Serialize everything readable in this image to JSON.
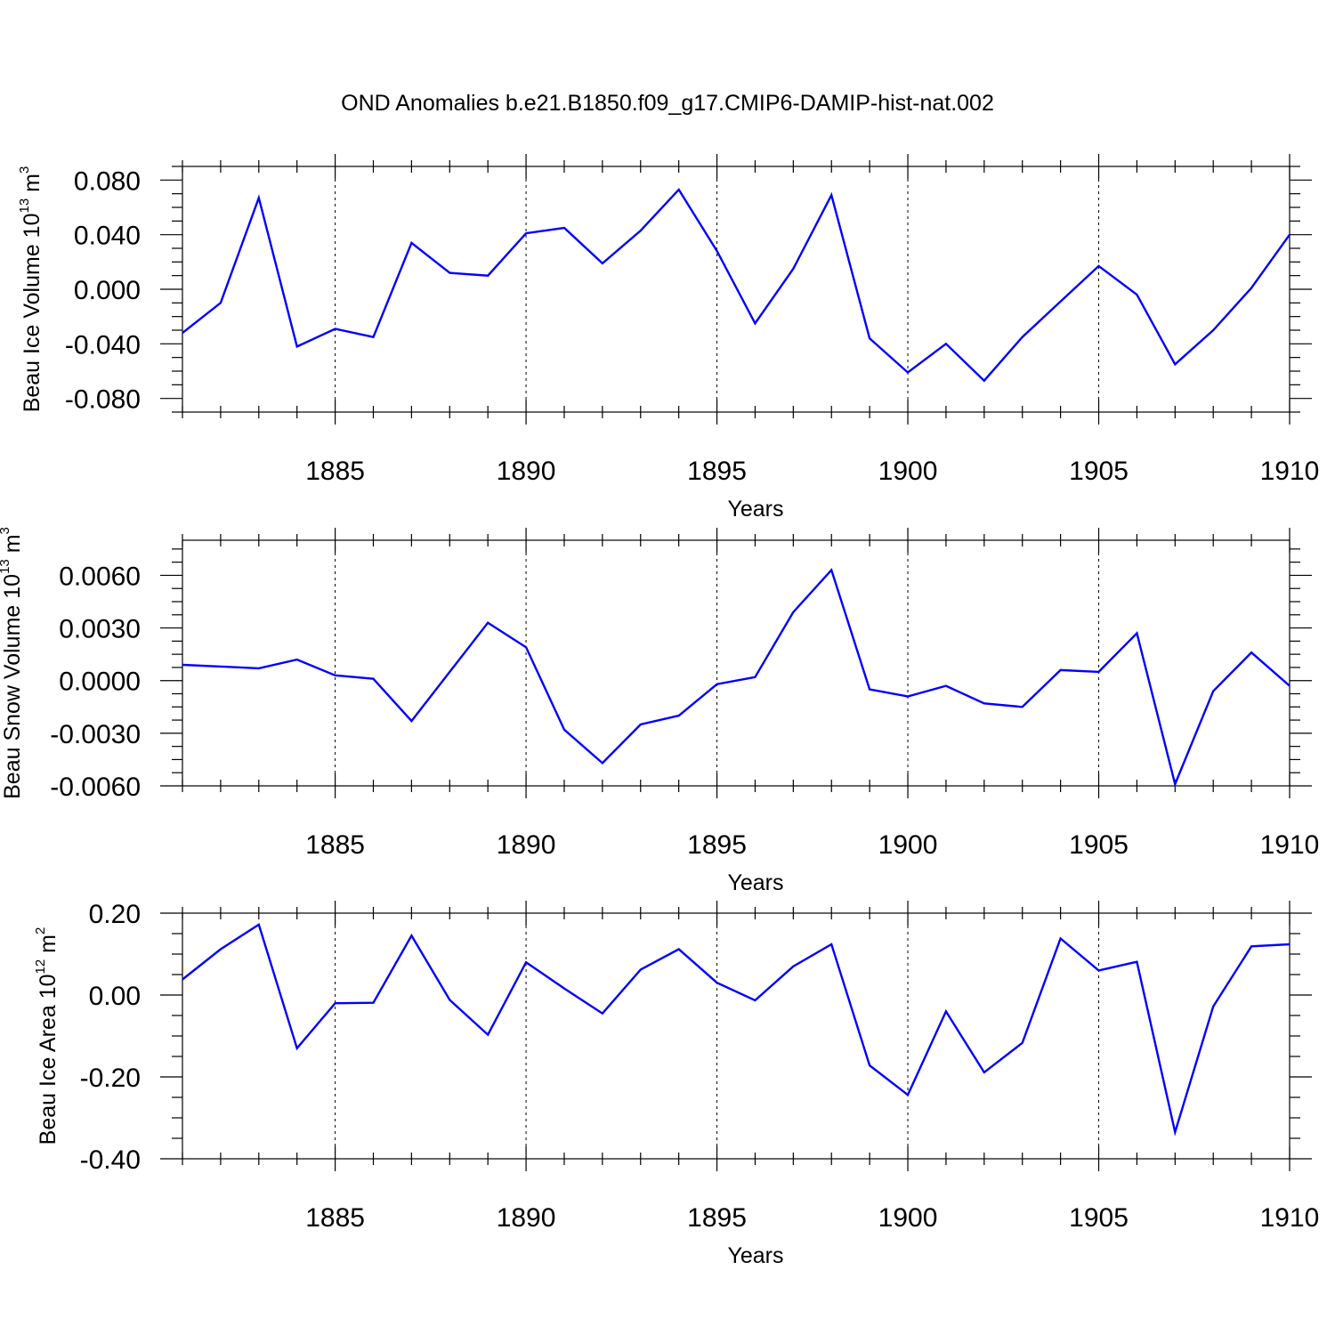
{
  "title": "OND Anomalies b.e21.B1850.f09_g17.CMIP6-DAMIP-hist-nat.002",
  "colors": {
    "line": "#0000ff",
    "axes": "#000000",
    "background": "#ffffff"
  },
  "chart_data": [
    {
      "type": "line",
      "name": "ice-volume",
      "series_name": "Beau Ice Volume",
      "ylabel": {
        "main": "Beau Ice Volume 10",
        "exp": "13",
        "unit": " m",
        "unit_exp": "3"
      },
      "xlabel": "Years",
      "xlim": [
        1881,
        1910
      ],
      "ylim": [
        -0.09,
        0.09
      ],
      "xticks": [
        1885,
        1890,
        1895,
        1900,
        1905,
        1910
      ],
      "xtick_labels": [
        "1885",
        "1890",
        "1895",
        "1900",
        "1905",
        "1910"
      ],
      "yticks": [
        0.08,
        0.04,
        0.0,
        -0.04,
        -0.08
      ],
      "ytick_labels": [
        "0.080",
        "0.040",
        "0.000",
        "-0.040",
        "-0.080"
      ],
      "x": [
        1881,
        1882,
        1883,
        1884,
        1885,
        1886,
        1887,
        1888,
        1889,
        1890,
        1891,
        1892,
        1893,
        1894,
        1895,
        1896,
        1897,
        1898,
        1899,
        1900,
        1901,
        1902,
        1903,
        1904,
        1905,
        1906,
        1907,
        1908,
        1909,
        1910
      ],
      "y": [
        -0.032,
        -0.01,
        0.067,
        -0.042,
        -0.029,
        -0.035,
        0.034,
        0.012,
        0.01,
        0.041,
        0.045,
        0.019,
        0.043,
        0.073,
        0.028,
        -0.025,
        0.015,
        0.069,
        -0.036,
        -0.061,
        -0.04,
        -0.067,
        -0.035,
        -0.009,
        0.017,
        -0.004,
        -0.055,
        -0.03,
        0.001,
        0.04
      ],
      "grid": "vertical dashed at major x ticks"
    },
    {
      "type": "line",
      "name": "snow-volume",
      "series_name": "Beau Snow Volume",
      "ylabel": {
        "main": "Beau Snow Volume 10",
        "exp": "13",
        "unit": " m",
        "unit_exp": "3"
      },
      "xlabel": "Years",
      "xlim": [
        1881,
        1910
      ],
      "ylim": [
        -0.006,
        0.008
      ],
      "xticks": [
        1885,
        1890,
        1895,
        1900,
        1905,
        1910
      ],
      "xtick_labels": [
        "1885",
        "1890",
        "1895",
        "1900",
        "1905",
        "1910"
      ],
      "yticks": [
        0.006,
        0.003,
        0.0,
        -0.003,
        -0.006
      ],
      "ytick_labels": [
        "0.0060",
        "0.0030",
        "0.0000",
        "-0.0030",
        "-0.0060"
      ],
      "x": [
        1881,
        1882,
        1883,
        1884,
        1885,
        1886,
        1887,
        1888,
        1889,
        1890,
        1891,
        1892,
        1893,
        1894,
        1895,
        1896,
        1897,
        1898,
        1899,
        1900,
        1901,
        1902,
        1903,
        1904,
        1905,
        1906,
        1907,
        1908,
        1909,
        1910
      ],
      "y": [
        0.0009,
        0.0008,
        0.0007,
        0.0012,
        0.0003,
        0.0001,
        -0.0023,
        0.0005,
        0.0033,
        0.0019,
        -0.0028,
        -0.0047,
        -0.0025,
        -0.002,
        -0.0002,
        0.0002,
        0.0039,
        0.0063,
        -0.0005,
        -0.0009,
        -0.0003,
        -0.0013,
        -0.0015,
        0.0006,
        0.0005,
        0.0027,
        -0.0059,
        -0.0006,
        0.0016,
        -0.0003
      ],
      "grid": "vertical dashed at major x ticks"
    },
    {
      "type": "line",
      "name": "ice-area",
      "series_name": "Beau Ice Area",
      "ylabel": {
        "main": "Beau Ice Area 10",
        "exp": "12",
        "unit": " m",
        "unit_exp": "2"
      },
      "xlabel": "Years",
      "xlim": [
        1881,
        1910
      ],
      "ylim": [
        -0.4,
        0.2
      ],
      "xticks": [
        1885,
        1890,
        1895,
        1900,
        1905,
        1910
      ],
      "xtick_labels": [
        "1885",
        "1890",
        "1895",
        "1900",
        "1905",
        "1910"
      ],
      "yticks": [
        0.2,
        0.0,
        -0.2,
        -0.4
      ],
      "ytick_labels": [
        "0.20",
        "0.00",
        "-0.20",
        "-0.40"
      ],
      "x": [
        1881,
        1882,
        1883,
        1884,
        1885,
        1886,
        1887,
        1888,
        1889,
        1890,
        1891,
        1892,
        1893,
        1894,
        1895,
        1896,
        1897,
        1898,
        1899,
        1900,
        1901,
        1902,
        1903,
        1904,
        1905,
        1906,
        1907,
        1908,
        1909,
        1910
      ],
      "y": [
        0.038,
        0.112,
        0.172,
        -0.13,
        -0.02,
        -0.019,
        0.145,
        -0.012,
        -0.097,
        0.08,
        0.016,
        -0.045,
        0.062,
        0.112,
        0.03,
        -0.013,
        0.07,
        0.124,
        -0.172,
        -0.244,
        -0.04,
        -0.189,
        -0.117,
        0.138,
        0.06,
        0.081,
        -0.335,
        -0.028,
        0.119,
        0.124
      ],
      "grid": "vertical dashed at major x ticks"
    }
  ]
}
